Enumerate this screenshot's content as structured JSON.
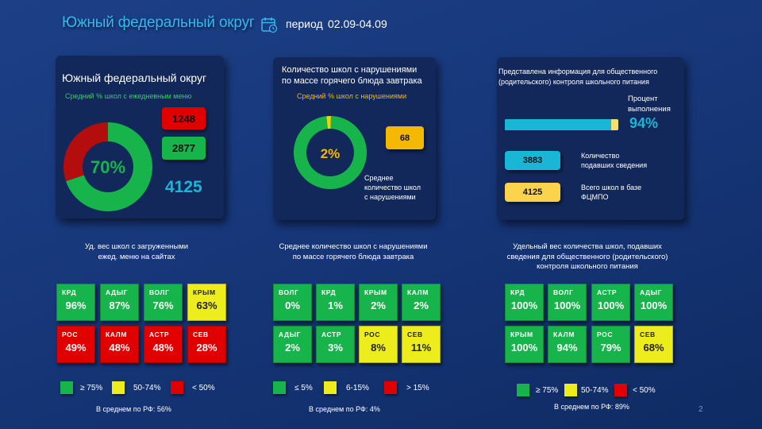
{
  "header": {
    "title": "Южный федеральный округ",
    "period_label": "период",
    "period_value": "02.09-04.09",
    "icon": "calendar-icon"
  },
  "colors": {
    "green": "#17b44b",
    "red": "#e00000",
    "yellow": "#eded1e",
    "orange": "#f5b800",
    "cyan": "#1ab6d6",
    "accent_text": "#35b8f0"
  },
  "panel1": {
    "title": "Южный федеральный округ",
    "subtitle": "Средний % школ с ежедневным меню",
    "donut_pct": "70%",
    "red_value": "1248",
    "green_value": "2877",
    "total_value": "4125"
  },
  "panel2": {
    "title_line1": "Количество школ с нарушениями",
    "title_line2": "по массе горячего блюда завтрака",
    "subtitle": "Средний % школ с нарушениями",
    "donut_pct": "2%",
    "badge_value": "68",
    "note_line1": "Среднее",
    "note_line2": "количество школ",
    "note_line3": "с нарушениями"
  },
  "panel3": {
    "title_line1": "Представлена информация для общественного",
    "title_line2": "(родительского) контроля школьного питания",
    "pct_label_line1": "Процент",
    "pct_label_line2": "выполнения",
    "pct_value": "94%",
    "count_value": "3883",
    "count_label_line1": "Количество",
    "count_label_line2": "подавших сведения",
    "total_value": "4125",
    "total_label_line1": "Всего школ в базе",
    "total_label_line2": "ФЦМПО"
  },
  "section1": {
    "desc_line1": "Уд. вес школ с загруженными",
    "desc_line2": "ежед. меню на сайтах",
    "legend": [
      "≥ 75%",
      "50-74%",
      "< 50%"
    ],
    "average": "В среднем по РФ: 56%"
  },
  "section2": {
    "desc_line1": "Среднее количество школ с нарушениями",
    "desc_line2": "по массе горячего блюда завтрака",
    "legend": [
      "≤ 5%",
      "6-15%",
      "> 15%"
    ],
    "average": "В среднем по РФ: 4%"
  },
  "section3": {
    "desc_line1": "Удельный вес количества школ, подавших",
    "desc_line2": "сведения для общественного (родительского)",
    "desc_line3": "контроля школьного питания",
    "legend": [
      "≥ 75%",
      "50-74%",
      "< 50%"
    ],
    "average": "В среднем по РФ: 89%"
  },
  "page_number": "2",
  "chart_data": [
    {
      "type": "pie",
      "name": "daily-menu-donut",
      "labels": [
        "2877",
        "1248"
      ],
      "values": [
        2877,
        1248
      ],
      "colors": [
        "#17b44b",
        "#b30d0d"
      ],
      "center_label": "70%"
    },
    {
      "type": "pie",
      "name": "violations-donut",
      "values": [
        2,
        98
      ],
      "colors": [
        "#e8d800",
        "#17b44b"
      ],
      "center_label": "2%"
    },
    {
      "type": "bar",
      "name": "completion-progress",
      "values": [
        94
      ],
      "ylim": [
        0,
        100
      ]
    },
    {
      "type": "table",
      "name": "daily-menu-regions",
      "categories": [
        "КРД",
        "АДЫГ",
        "ВОЛГ",
        "КРЫМ",
        "РОС",
        "КАЛМ",
        "АСТР",
        "СЕВ"
      ],
      "labels": [
        "96%",
        "87%",
        "76%",
        "63%",
        "49%",
        "48%",
        "48%",
        "28%"
      ],
      "values": [
        96,
        87,
        76,
        63,
        49,
        48,
        48,
        28
      ],
      "colors": [
        "#17b44b",
        "#17b44b",
        "#17b44b",
        "#eded1e",
        "#e00000",
        "#e00000",
        "#e00000",
        "#e00000"
      ]
    },
    {
      "type": "table",
      "name": "violation-regions",
      "categories": [
        "ВОЛГ",
        "КРД",
        "КРЫМ",
        "КАЛМ",
        "АДЫГ",
        "АСТР",
        "РОС",
        "СЕВ"
      ],
      "labels": [
        "0%",
        "1%",
        "2%",
        "2%",
        "2%",
        "3%",
        "8%",
        "11%"
      ],
      "values": [
        0,
        1,
        2,
        2,
        2,
        3,
        8,
        11
      ],
      "colors": [
        "#17b44b",
        "#17b44b",
        "#17b44b",
        "#17b44b",
        "#17b44b",
        "#17b44b",
        "#eded1e",
        "#eded1e"
      ]
    },
    {
      "type": "table",
      "name": "parental-control-regions",
      "categories": [
        "КРД",
        "ВОЛГ",
        "АСТР",
        "АДЫГ",
        "КРЫМ",
        "КАЛМ",
        "РОС",
        "СЕВ"
      ],
      "labels": [
        "100%",
        "100%",
        "100%",
        "100%",
        "100%",
        "94%",
        "79%",
        "68%"
      ],
      "values": [
        100,
        100,
        100,
        100,
        100,
        94,
        79,
        68
      ],
      "colors": [
        "#17b44b",
        "#17b44b",
        "#17b44b",
        "#17b44b",
        "#17b44b",
        "#17b44b",
        "#17b44b",
        "#eded1e"
      ]
    }
  ]
}
